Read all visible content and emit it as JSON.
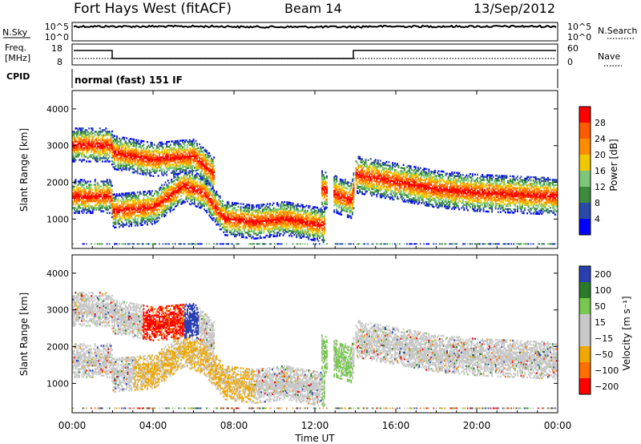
{
  "header": {
    "station": "Fort Hays West (fitACF)",
    "beam": "Beam 14",
    "date": "13/Sep/2012"
  },
  "noise_panel": {
    "left_label": "N.Sky",
    "right_label": "N.Search",
    "left_ticks": [
      "10^5",
      "10^0"
    ],
    "right_ticks": [
      "10^5",
      "10^0"
    ]
  },
  "freq_panel": {
    "left_label_1": "Freq.",
    "left_label_2": "[MHz]",
    "left_ticks": [
      "18",
      "8"
    ],
    "right_label": "Nave",
    "right_ticks": [
      "60",
      "0"
    ],
    "cpid_label": "CPID",
    "cpid_value": "normal (fast) 151 IF"
  },
  "colors": {
    "power": [
      "#0000ff",
      "#2a4aa8",
      "#3c8c3c",
      "#7cc878",
      "#f0c800",
      "#ff8c00",
      "#ff5a00",
      "#ff0000"
    ],
    "velocity": [
      "#2a40b0",
      "#2a7a2a",
      "#78c850",
      "#c8c8c8",
      "#c8c8c8",
      "#f0a800",
      "#ff6e00",
      "#ff0000"
    ]
  },
  "chart_data": [
    {
      "type": "heatmap",
      "name": "power",
      "ylabel": "Slant Range [km]",
      "yticks": [
        "1000",
        "2000",
        "3000",
        "4000"
      ],
      "ylim": [
        200,
        4500
      ],
      "xlim": [
        0,
        24
      ],
      "xtick_values": [
        0,
        4,
        8,
        12,
        16,
        20,
        24
      ],
      "colorbar": {
        "label": "Power [dB]",
        "ticks": [
          "28",
          "24",
          "20",
          "16",
          "12",
          "8",
          "4"
        ],
        "range": [
          0,
          32
        ]
      },
      "features": [
        {
          "desc": "main backscatter band",
          "t": [
            0,
            1.9,
            2,
            4,
            5.5,
            6.5,
            7.5,
            9,
            10.5,
            12.5
          ],
          "r": [
            1600,
            1600,
            1200,
            1300,
            1900,
            1700,
            1000,
            900,
            1000,
            800
          ]
        },
        {
          "desc": "far band",
          "t": [
            0,
            1.9,
            2,
            4,
            6,
            7
          ],
          "r": [
            3000,
            3000,
            2800,
            2600,
            2700,
            2200
          ]
        },
        {
          "desc": "evening band",
          "t": [
            12.3,
            13.8,
            14,
            16,
            18,
            20,
            24
          ],
          "r": [
            1800,
            1500,
            2200,
            2000,
            1800,
            1700,
            1600
          ]
        }
      ]
    },
    {
      "type": "heatmap",
      "name": "velocity",
      "ylabel": "Slant Range [km]",
      "yticks": [
        "1000",
        "2000",
        "3000",
        "4000"
      ],
      "ylim": [
        200,
        4500
      ],
      "xlim": [
        0,
        24
      ],
      "colorbar": {
        "label": "Velocity [m s⁻¹]",
        "ticks": [
          "200",
          "100",
          "50",
          "15",
          "−15",
          "−50",
          "−100",
          "−200"
        ],
        "range": [
          -240,
          240
        ]
      }
    }
  ],
  "x_axis": {
    "ticks": [
      "00:00",
      "04:00",
      "08:00",
      "12:00",
      "16:00",
      "20:00",
      "00:00"
    ],
    "label": "Time UT"
  }
}
